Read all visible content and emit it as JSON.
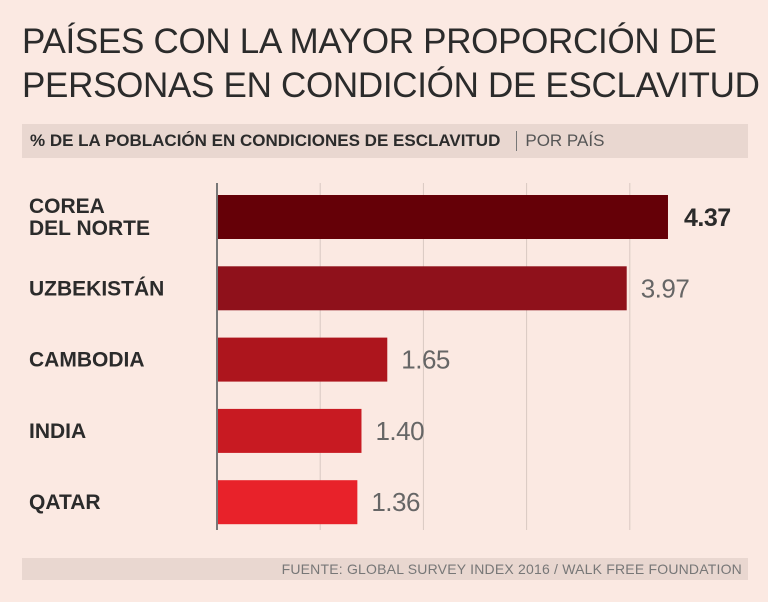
{
  "header": {
    "title_line1": "PAÍSES CON LA MAYOR PROPORCIÓN DE",
    "title_line2": "PERSONAS EN CONDICIÓN DE ESCLAVITUD",
    "subtitle": "% DE LA POBLACIÓN EN CONDICIONES DE ESCLAVITUD",
    "subtitle_unit": "POR PAÍS"
  },
  "footer": {
    "source": "FUENTE: GLOBAL SURVEY INDEX 2016 / WALK FREE FOUNDATION"
  },
  "chart_data": {
    "type": "bar",
    "orientation": "horizontal",
    "title": "PAÍSES CON LA MAYOR PROPORCIÓN DE PERSONAS EN CONDICIÓN DE ESCLAVITUD",
    "xlabel": "% DE LA POBLACIÓN EN CONDICIONES DE ESCLAVITUD",
    "ylabel": "",
    "xlim": [
      0,
      4.5
    ],
    "grid": true,
    "categories": [
      [
        "COREA",
        "DEL NORTE"
      ],
      [
        "UZBEKISTÁN"
      ],
      [
        "CAMBODIA"
      ],
      [
        "INDIA"
      ],
      [
        "QATAR"
      ]
    ],
    "values": [
      4.37,
      3.97,
      1.65,
      1.4,
      1.36
    ],
    "value_labels": [
      "4.37",
      "3.97",
      "1.65",
      "1.40",
      "1.36"
    ],
    "colors": [
      "#650007",
      "#8f111b",
      "#ad151d",
      "#c81a22",
      "#e8222a"
    ],
    "highlight_color": "#2b2b2b",
    "gridline_color": "#d9c9c2",
    "axis_color": "#777777",
    "label_color": "#2b2b2b",
    "value_color": "#666666"
  }
}
